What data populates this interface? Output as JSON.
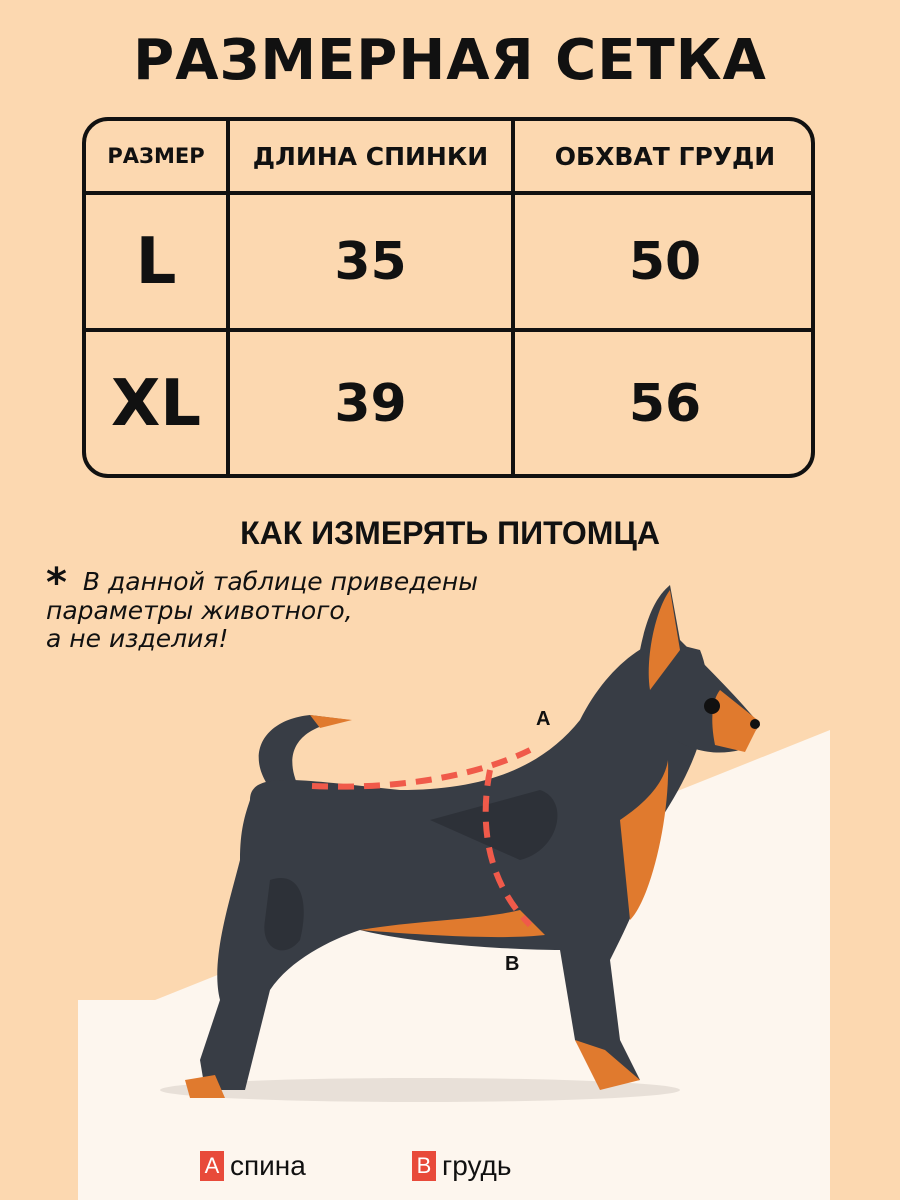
{
  "title": "РАЗМЕРНАЯ СЕТКА",
  "table": {
    "headers": [
      "РАЗМЕР",
      "ДЛИНА СПИНКИ",
      "ОБХВАТ ГРУДИ"
    ],
    "rows": [
      {
        "size": "L",
        "back_length": "35",
        "chest": "50"
      },
      {
        "size": "XL",
        "back_length": "39",
        "chest": "56"
      }
    ]
  },
  "subtitle": "КАК ИЗМЕРЯТЬ ПИТОМЦА",
  "note": {
    "star": "*",
    "lines": [
      "В данной таблице приведены",
      "параметры животного,",
      "а не изделия!"
    ]
  },
  "diagram": {
    "label_a": "A",
    "label_b": "B"
  },
  "legend": [
    {
      "badge": "A",
      "label": "спина"
    },
    {
      "badge": "B",
      "label": "грудь"
    }
  ],
  "colors": {
    "background": "#fcd8b0",
    "accent": "#e84a3a",
    "dog": "#383d45",
    "tan": "#e07a2e"
  }
}
